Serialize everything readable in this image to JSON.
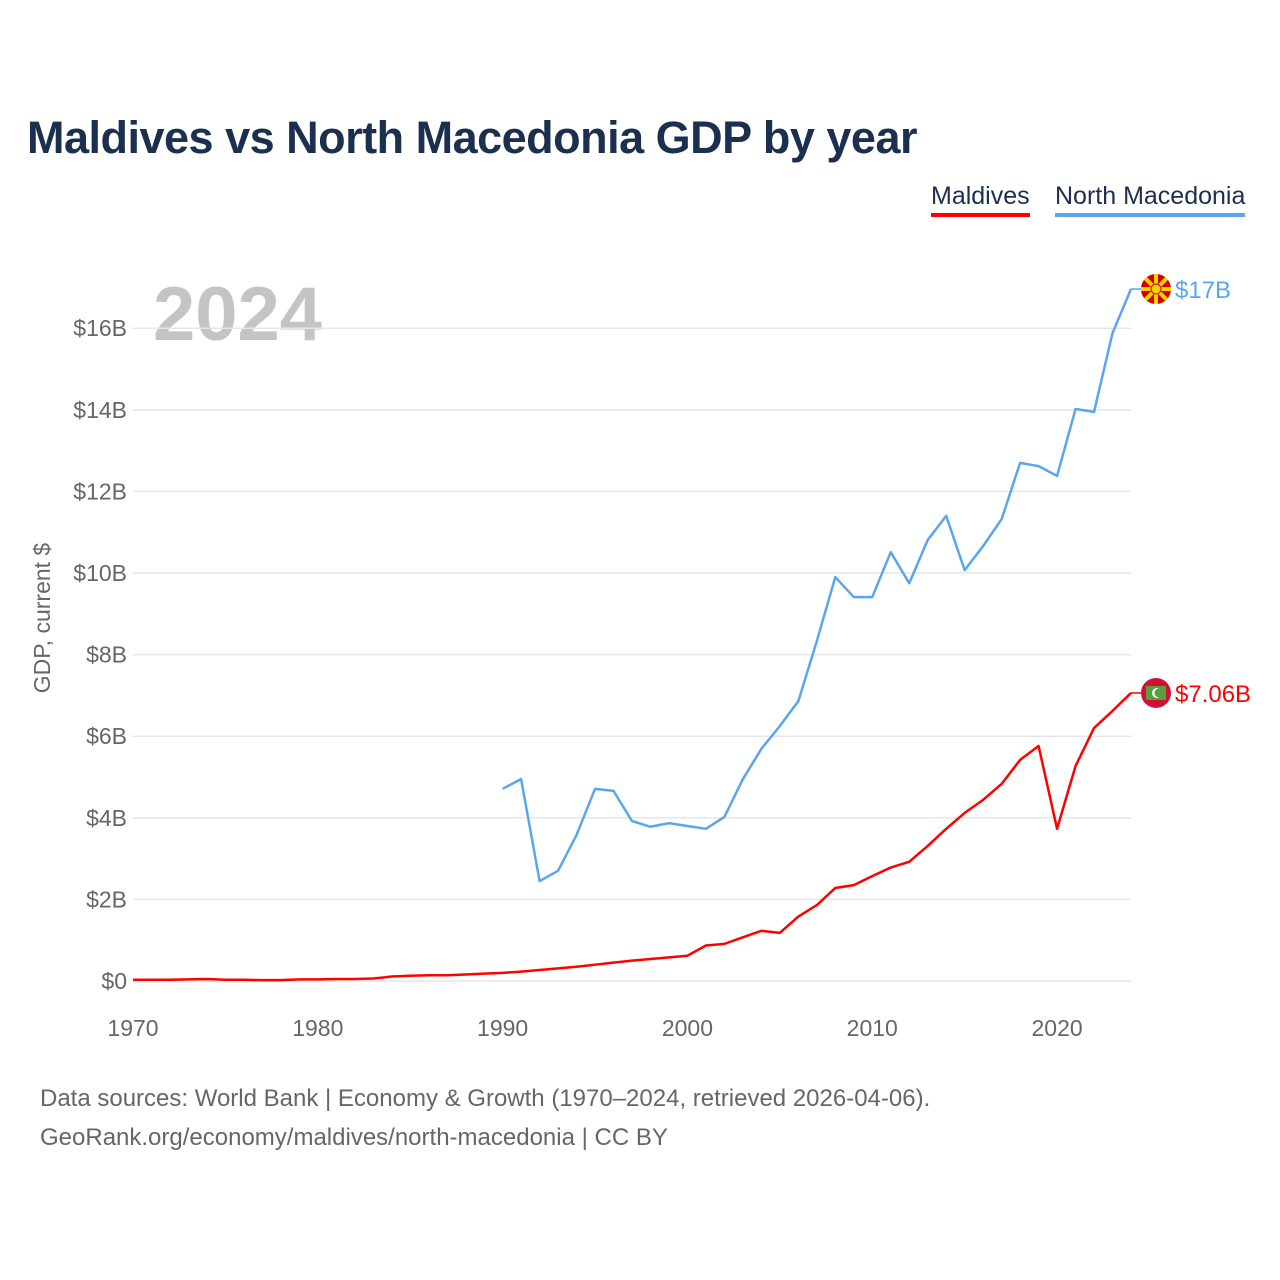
{
  "chart_data": {
    "type": "line",
    "title": "Maldives vs North Macedonia GDP by year",
    "ylabel": "GDP, current $",
    "xlabel": "",
    "year_label": "2024",
    "xlim": [
      1970,
      2024
    ],
    "ylim": [
      0,
      17
    ],
    "x_ticks": [
      1970,
      1980,
      1990,
      2000,
      2010,
      2020
    ],
    "y_ticks": [
      0,
      2,
      4,
      6,
      8,
      10,
      12,
      14,
      16
    ],
    "y_tick_labels": [
      "$0",
      "$2B",
      "$4B",
      "$6B",
      "$8B",
      "$10B",
      "$12B",
      "$14B",
      "$16B"
    ],
    "grid": true,
    "legend_position": "top-right",
    "series": [
      {
        "name": "Maldives",
        "color": "#ff0000",
        "end_label": "$7.06B",
        "start_year": 1970,
        "values": [
          0.03,
          0.03,
          0.03,
          0.04,
          0.05,
          0.03,
          0.03,
          0.02,
          0.02,
          0.04,
          0.04,
          0.05,
          0.05,
          0.06,
          0.11,
          0.13,
          0.14,
          0.14,
          0.16,
          0.18,
          0.2,
          0.23,
          0.27,
          0.31,
          0.35,
          0.4,
          0.45,
          0.5,
          0.54,
          0.58,
          0.62,
          0.87,
          0.91,
          1.07,
          1.23,
          1.18,
          1.58,
          1.86,
          2.28,
          2.35,
          2.57,
          2.78,
          2.92,
          3.31,
          3.73,
          4.12,
          4.44,
          4.83,
          5.42,
          5.76,
          3.73,
          5.27,
          6.2,
          6.62,
          7.06
        ]
      },
      {
        "name": "North Macedonia",
        "color": "#5aa6ee",
        "end_label": "$17B",
        "start_year": 1990,
        "values": [
          4.71,
          4.95,
          2.45,
          2.7,
          3.58,
          4.71,
          4.66,
          3.92,
          3.78,
          3.87,
          3.8,
          3.73,
          4.02,
          4.95,
          5.69,
          6.25,
          6.86,
          8.33,
          9.9,
          9.41,
          9.41,
          10.51,
          9.75,
          10.81,
          11.4,
          10.07,
          10.66,
          11.32,
          12.7,
          12.62,
          12.38,
          14.02,
          13.95,
          15.88,
          16.96
        ]
      }
    ]
  },
  "footer": {
    "line1": "Data sources: World Bank | Economy & Growth (1970–2024, retrieved 2026-04-06).",
    "line2": "GeoRank.org/economy/maldives/north-macedonia | CC BY"
  }
}
